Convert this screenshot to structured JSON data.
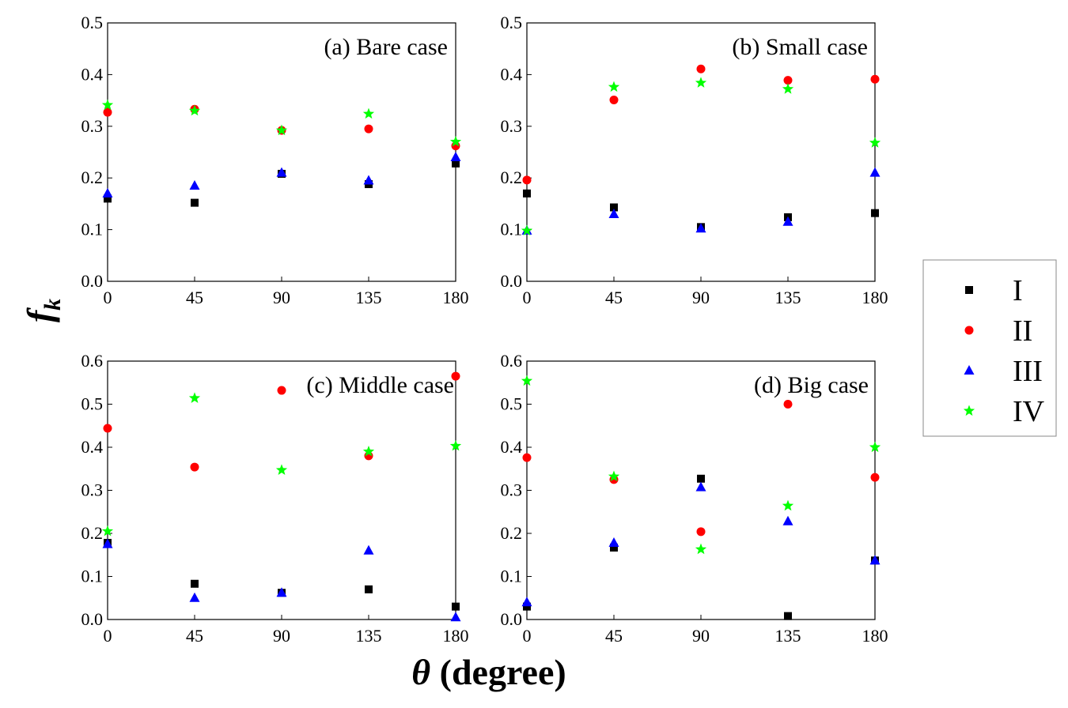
{
  "chart_data": [
    {
      "type": "scatter",
      "title": "(a) Bare case",
      "x": [
        0,
        45,
        90,
        135,
        180
      ],
      "xticks": [
        "0",
        "45",
        "90",
        "135",
        "180"
      ],
      "ylim": [
        0,
        0.5
      ],
      "yticks": [
        "0.0",
        "0.1",
        "0.2",
        "0.3",
        "0.4",
        "0.5"
      ],
      "series": [
        {
          "name": "I",
          "values": [
            0.16,
            0.152,
            0.208,
            0.188,
            0.228
          ]
        },
        {
          "name": "II",
          "values": [
            0.327,
            0.333,
            0.292,
            0.295,
            0.262
          ]
        },
        {
          "name": "III",
          "values": [
            0.17,
            0.185,
            0.21,
            0.195,
            0.24
          ]
        },
        {
          "name": "IV",
          "values": [
            0.341,
            0.33,
            0.292,
            0.324,
            0.27
          ]
        }
      ]
    },
    {
      "type": "scatter",
      "title": "(b) Small case",
      "x": [
        0,
        45,
        90,
        135,
        180
      ],
      "xticks": [
        "0",
        "45",
        "90",
        "135",
        "180"
      ],
      "ylim": [
        0,
        0.5
      ],
      "yticks": [
        "0.0",
        "0.1",
        "0.2",
        "0.3",
        "0.4",
        "0.5"
      ],
      "series": [
        {
          "name": "I",
          "values": [
            0.17,
            0.143,
            0.105,
            0.124,
            0.132
          ]
        },
        {
          "name": "II",
          "values": [
            0.196,
            0.351,
            0.411,
            0.389,
            0.391
          ]
        },
        {
          "name": "III",
          "values": [
            0.098,
            0.13,
            0.102,
            0.115,
            0.21
          ]
        },
        {
          "name": "IV",
          "values": [
            0.098,
            0.376,
            0.384,
            0.372,
            0.268
          ]
        }
      ]
    },
    {
      "type": "scatter",
      "title": "(c) Middle case",
      "x": [
        0,
        45,
        90,
        135,
        180
      ],
      "xticks": [
        "0",
        "45",
        "90",
        "135",
        "180"
      ],
      "ylim": [
        0,
        0.6
      ],
      "yticks": [
        "0.0",
        "0.1",
        "0.2",
        "0.3",
        "0.4",
        "0.5",
        "0.6"
      ],
      "series": [
        {
          "name": "I",
          "values": [
            0.178,
            0.083,
            0.062,
            0.07,
            0.03
          ]
        },
        {
          "name": "II",
          "values": [
            0.444,
            0.354,
            0.532,
            0.38,
            0.565
          ]
        },
        {
          "name": "III",
          "values": [
            0.175,
            0.05,
            0.062,
            0.16,
            0.005
          ]
        },
        {
          "name": "IV",
          "values": [
            0.205,
            0.514,
            0.347,
            0.39,
            0.403
          ]
        }
      ]
    },
    {
      "type": "scatter",
      "title": "(d) Big case",
      "x": [
        0,
        45,
        90,
        135,
        180
      ],
      "xticks": [
        "0",
        "45",
        "90",
        "135",
        "180"
      ],
      "ylim": [
        0,
        0.6
      ],
      "yticks": [
        "0.0",
        "0.1",
        "0.2",
        "0.3",
        "0.4",
        "0.5",
        "0.6"
      ],
      "series": [
        {
          "name": "I",
          "values": [
            0.03,
            0.167,
            0.327,
            0.008,
            0.137
          ]
        },
        {
          "name": "II",
          "values": [
            0.376,
            0.325,
            0.204,
            0.5,
            0.33
          ]
        },
        {
          "name": "III",
          "values": [
            0.04,
            0.178,
            0.307,
            0.228,
            0.137
          ]
        },
        {
          "name": "IV",
          "values": [
            0.554,
            0.332,
            0.163,
            0.264,
            0.4
          ]
        }
      ]
    }
  ],
  "axes": {
    "ylabel_main": "f",
    "ylabel_sub": "k",
    "xlabel_theta": "θ",
    "xlabel_rest": " (degree)"
  },
  "legend": {
    "entries": [
      {
        "name": "I",
        "marker": "square",
        "color": "#000000"
      },
      {
        "name": "II",
        "marker": "circle",
        "color": "#ff0000"
      },
      {
        "name": "III",
        "marker": "triangle",
        "color": "#0000ff"
      },
      {
        "name": "IV",
        "marker": "star",
        "color": "#00ff00"
      }
    ]
  }
}
